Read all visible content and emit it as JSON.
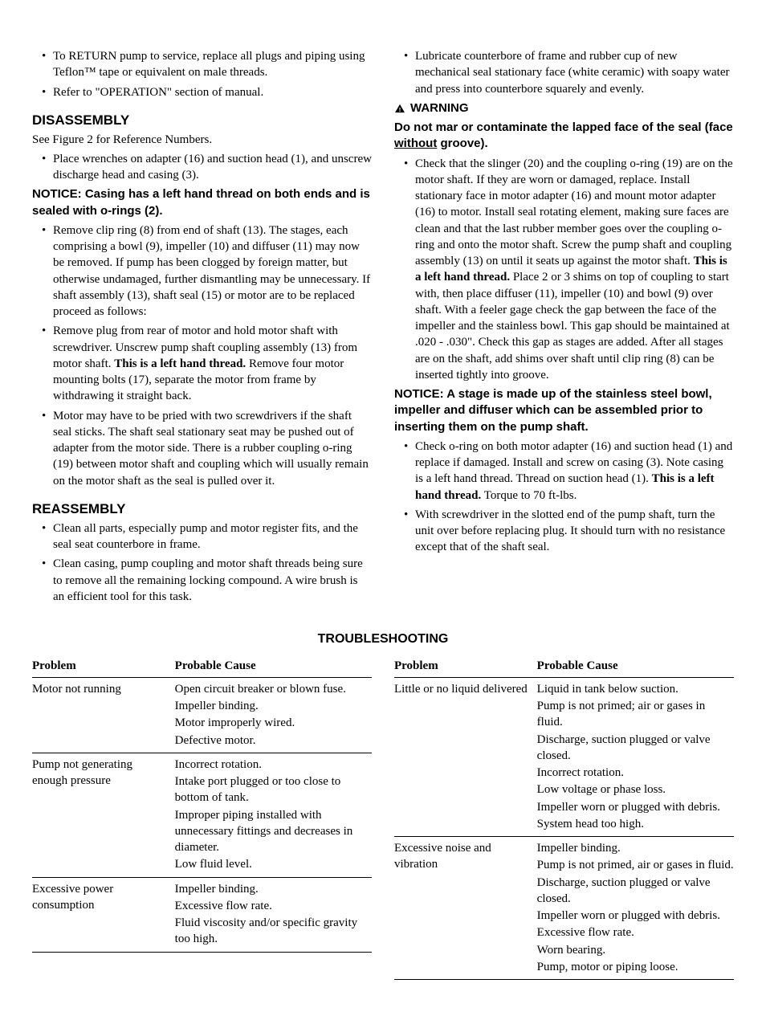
{
  "left_col": {
    "intro_bullets": [
      "To RETURN pump to service, replace all plugs and piping using Teflon™ tape or equivalent on male threads.",
      "Refer to \"OPERATION\" section of manual."
    ],
    "disassembly": {
      "heading": "DISASSEMBLY",
      "intro": "See Figure 2 for Reference Numbers.",
      "b1": "Place wrenches on adapter (16) and suction head (1), and unscrew discharge head and casing (3).",
      "notice": "NOTICE: Casing has a left hand thread on both ends and is sealed with o-rings (2).",
      "b2": "Remove clip ring (8) from end of shaft (13). The stages, each comprising a bowl (9), impeller (10) and diffuser (11) may now be removed. If pump has been clogged by foreign matter, but otherwise undamaged, further dismantling may be unnecessary. If shaft assembly (13), shaft seal (15) or motor are to be replaced proceed as follows:",
      "b3_pre": "Remove plug from rear of motor and hold motor shaft with screwdriver. Unscrew pump shaft coupling assembly (13) from motor shaft. ",
      "b3_bold": "This is a left hand thread.",
      "b3_post": " Remove four motor mounting bolts (17), separate the motor from frame by withdrawing it straight back.",
      "b4": "Motor may have to be pried with two screwdrivers if the shaft seal sticks. The shaft seal stationary seat may be pushed out of adapter from the motor side. There is a rubber coupling o-ring (19) between motor shaft and coupling which will usually remain on the motor shaft as the seal is pulled over it."
    },
    "reassembly": {
      "heading": "REASSEMBLY",
      "b1": "Clean all parts, especially pump and motor register fits, and the seal seat counterbore in frame.",
      "b2": "Clean casing, pump coupling and motor shaft threads being sure to remove all the remaining locking compound. A wire brush is an efficient tool for this task."
    }
  },
  "right_col": {
    "b1": "Lubricate counterbore of frame and rubber cup of new mechanical seal stationary face (white ceramic) with soapy water and press into counterbore squarely and evenly.",
    "warning_label": "WARNING",
    "warning_text_pre": "Do not mar or contaminate the lapped face of the seal (face ",
    "warning_text_u": "without",
    "warning_text_post": " groove).",
    "b2_pre": "Check that the slinger (20) and the coupling o-ring (19) are on the motor shaft. If they are worn or damaged, replace. Install stationary face in motor adapter (16) and mount motor adapter (16) to motor. Install seal rotating element, making sure faces are clean and that the last rubber member goes over the coupling o-ring and onto the motor shaft. Screw the pump shaft and coupling assembly (13) on until it seats up against the motor shaft. ",
    "b2_bold": "This is a left hand thread.",
    "b2_post": " Place 2 or 3 shims on top of coupling to start with, then place diffuser (11), impeller (10) and bowl (9) over shaft. With a feeler gage check the gap between the face of the impeller and the stainless bowl. This gap should be maintained at .020 - .030\". Check this gap as stages are added. After all stages are on the shaft, add shims over shaft until clip ring (8) can be inserted tightly into groove.",
    "notice2_label": "NOTICE",
    "notice2_text": ": A stage is made up of the stainless steel bowl, impeller and diffuser which can be assembled prior to inserting them on the pump shaft.",
    "b3_pre": "Check o-ring on both motor adapter (16) and suction head (1) and replace if damaged. Install and screw on casing (3). Note casing is a left hand thread. Thread on suction head (1). ",
    "b3_bold": "This is a left hand thread.",
    "b3_post": " Torque to 70 ft-lbs.",
    "b4": "With screwdriver in the slotted end of the pump shaft, turn the unit over before replacing plug. It should turn with no resistance except that of the shaft seal."
  },
  "troubleshooting": {
    "heading": "TROUBLESHOOTING",
    "header_problem": "Problem",
    "header_cause": "Probable Cause",
    "left": [
      {
        "problem": [
          "Motor not running"
        ],
        "cause": [
          "Open circuit breaker or blown fuse.",
          "Impeller binding.",
          "Motor improperly wired.",
          "Defective motor."
        ]
      },
      {
        "problem": [
          "Pump not generating enough pressure"
        ],
        "cause": [
          "Incorrect rotation.",
          "Intake port plugged or too close to bottom of tank.",
          "Improper piping installed with unnecessary fittings and decreases in diameter.",
          "Low fluid level."
        ]
      },
      {
        "problem": [
          "Excessive power consumption"
        ],
        "cause": [
          "Impeller binding.",
          "Excessive flow rate.",
          "Fluid viscosity and/or specific gravity too high."
        ]
      }
    ],
    "right": [
      {
        "problem": [
          "Little or no liquid delivered"
        ],
        "cause": [
          "Liquid in tank below suction.",
          "Pump is not primed; air or gases in fluid.",
          "Discharge, suction plugged or valve closed.",
          "Incorrect rotation.",
          "Low voltage or phase loss.",
          "Impeller worn or plugged with debris.",
          "System head too high."
        ]
      },
      {
        "problem": [
          "Excessive noise and vibration"
        ],
        "cause": [
          "Impeller binding.",
          "Pump is not primed, air or gases in fluid.",
          "Discharge, suction plugged or valve closed.",
          "Impeller worn or plugged with debris.",
          "Excessive flow rate.",
          "Worn bearing.",
          "Pump, motor or piping loose."
        ]
      }
    ]
  }
}
